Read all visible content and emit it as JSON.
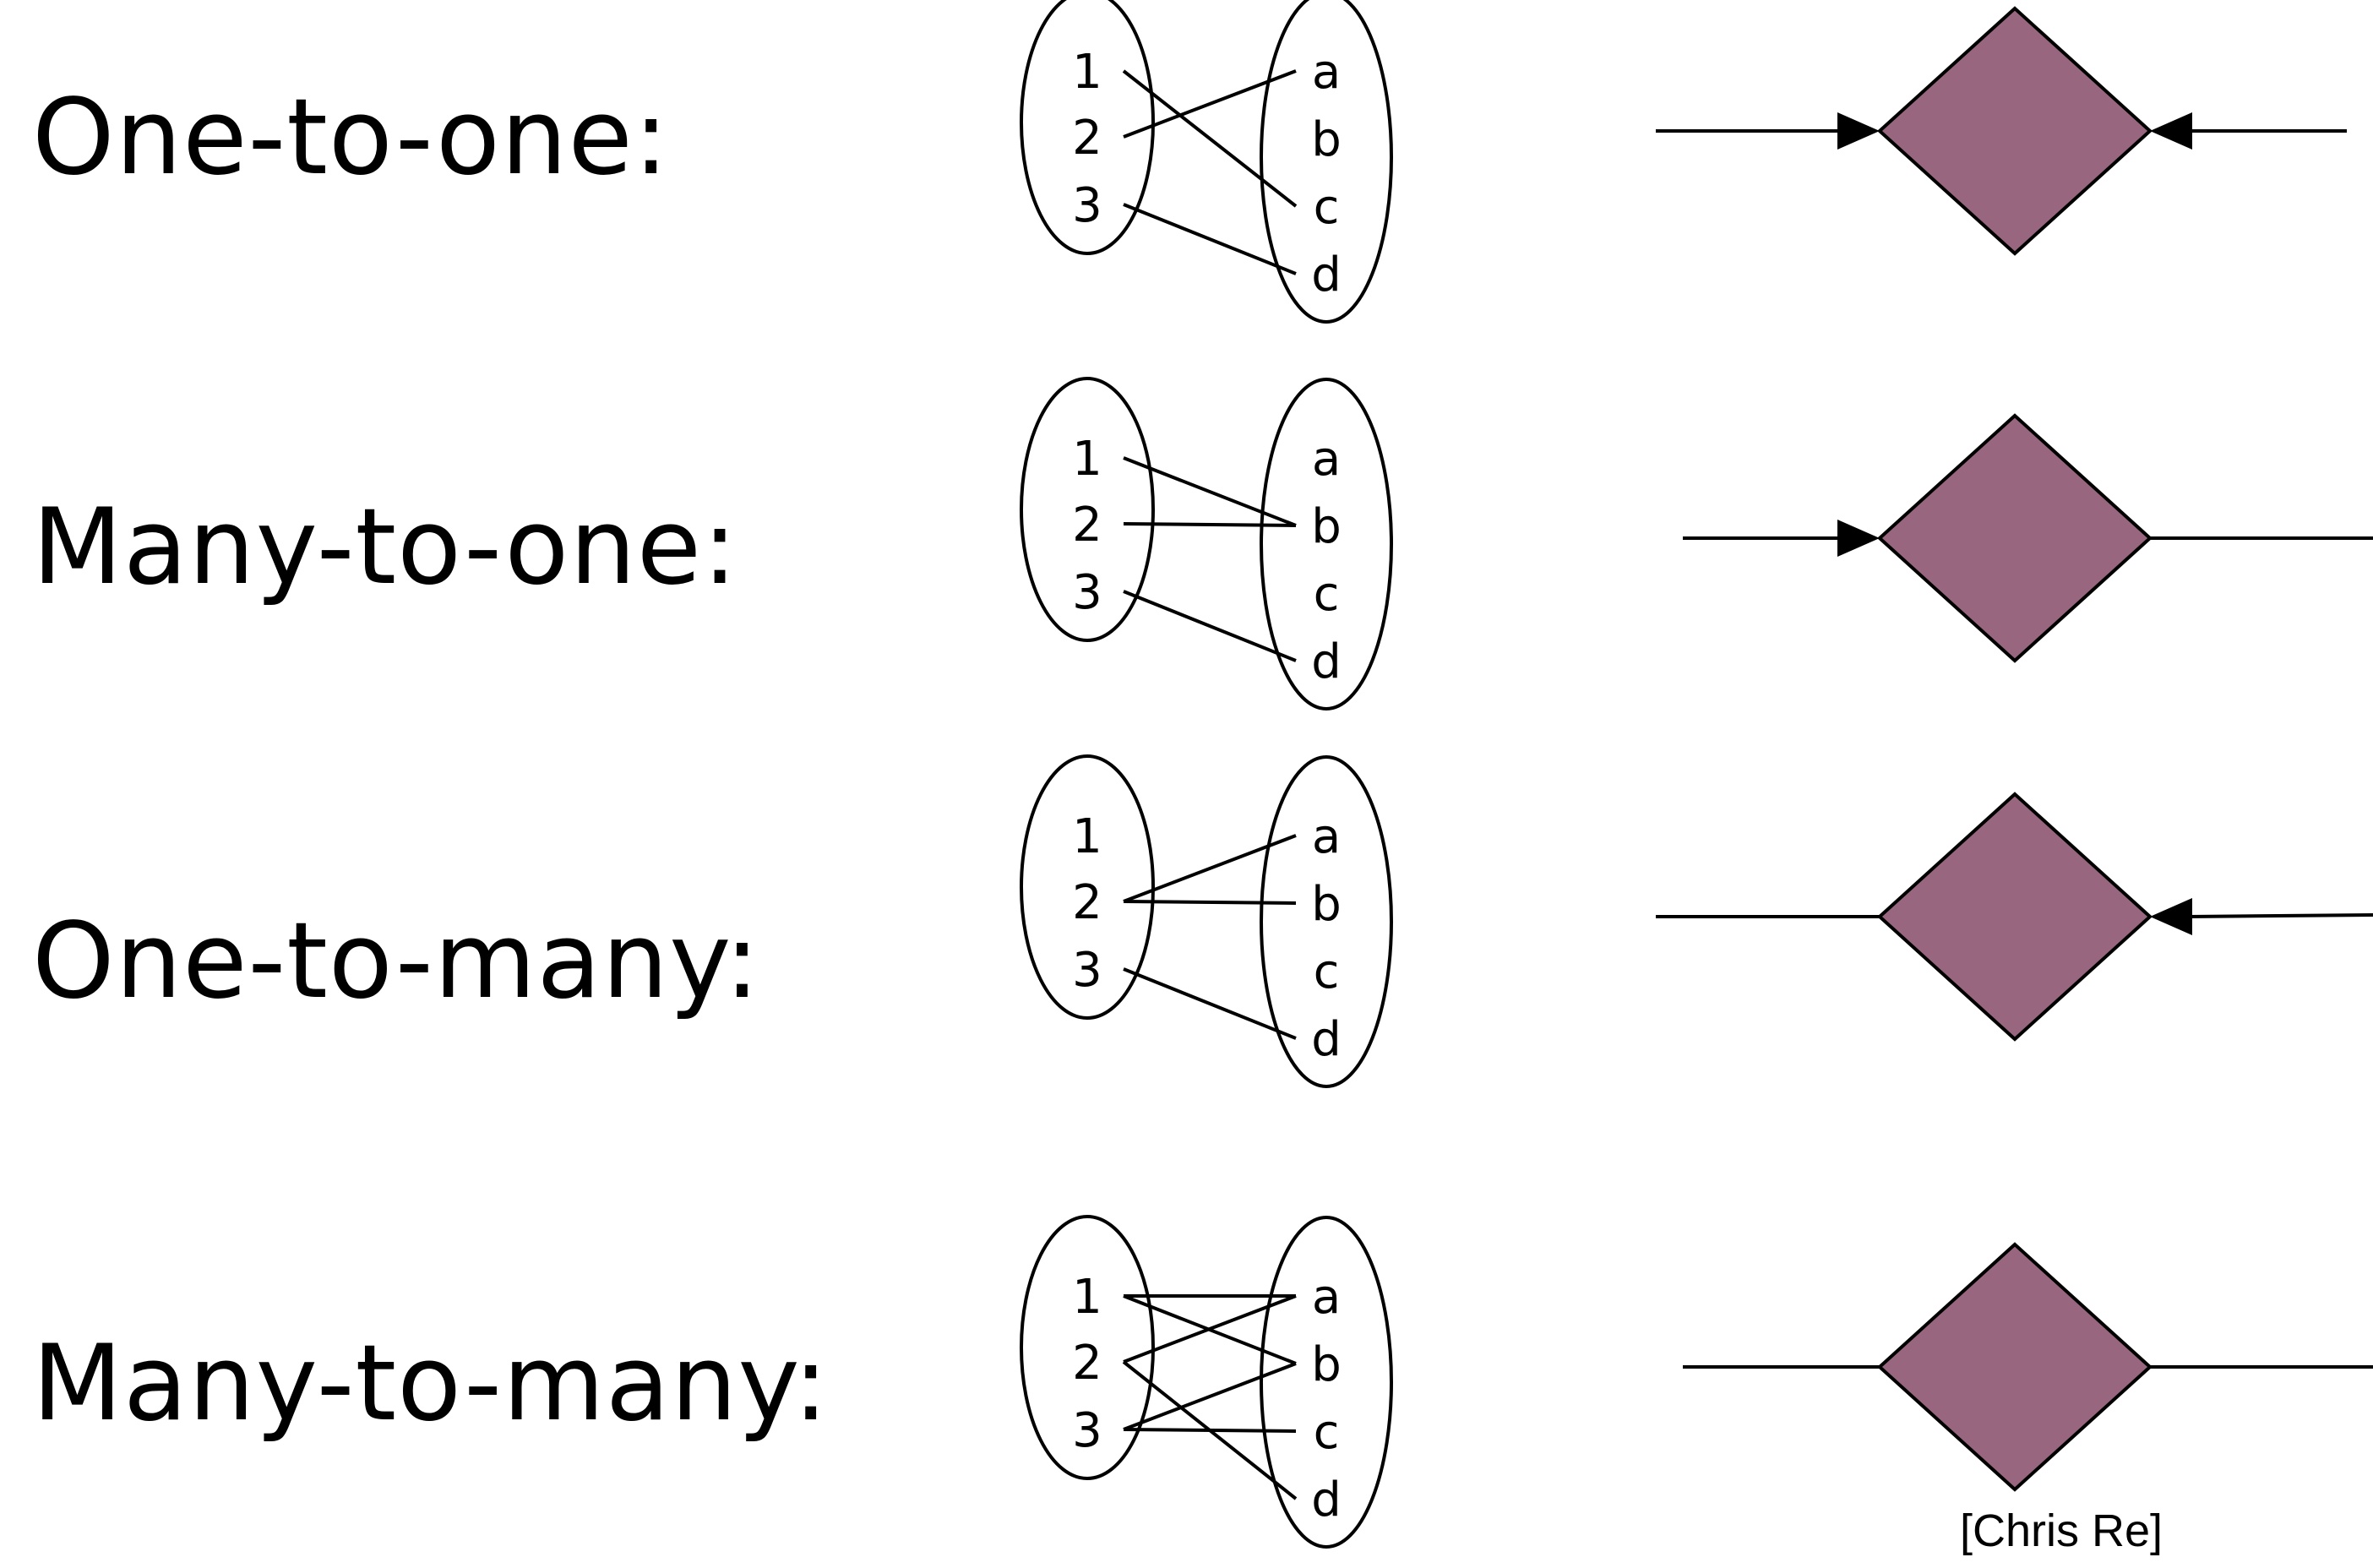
{
  "diagram": {
    "title_rows": [
      {
        "label": "One-to-one:",
        "left_set": [
          "1",
          "2",
          "3"
        ],
        "right_set": [
          "a",
          "b",
          "c",
          "d"
        ],
        "mappings": [
          [
            "1",
            "c"
          ],
          [
            "2",
            "a"
          ],
          [
            "3",
            "d"
          ]
        ],
        "left_arrow": true,
        "right_arrow": true
      },
      {
        "label": "Many-to-one:",
        "left_set": [
          "1",
          "2",
          "3"
        ],
        "right_set": [
          "a",
          "b",
          "c",
          "d"
        ],
        "mappings": [
          [
            "1",
            "b"
          ],
          [
            "2",
            "b"
          ],
          [
            "3",
            "d"
          ]
        ],
        "left_arrow": true,
        "right_arrow": false
      },
      {
        "label": "One-to-many:",
        "left_set": [
          "1",
          "2",
          "3"
        ],
        "right_set": [
          "a",
          "b",
          "c",
          "d"
        ],
        "mappings": [
          [
            "2",
            "a"
          ],
          [
            "2",
            "b"
          ],
          [
            "3",
            "d"
          ]
        ],
        "left_arrow": false,
        "right_arrow": true
      },
      {
        "label": "Many-to-many:",
        "left_set": [
          "1",
          "2",
          "3"
        ],
        "right_set": [
          "a",
          "b",
          "c",
          "d"
        ],
        "mappings": [
          [
            "1",
            "a"
          ],
          [
            "1",
            "b"
          ],
          [
            "2",
            "a"
          ],
          [
            "2",
            "d"
          ],
          [
            "3",
            "b"
          ],
          [
            "3",
            "c"
          ]
        ],
        "left_arrow": false,
        "right_arrow": false
      }
    ],
    "credit": "[Chris Re]",
    "colors": {
      "diamond_fill": "#98667f",
      "stroke": "#000000"
    }
  }
}
